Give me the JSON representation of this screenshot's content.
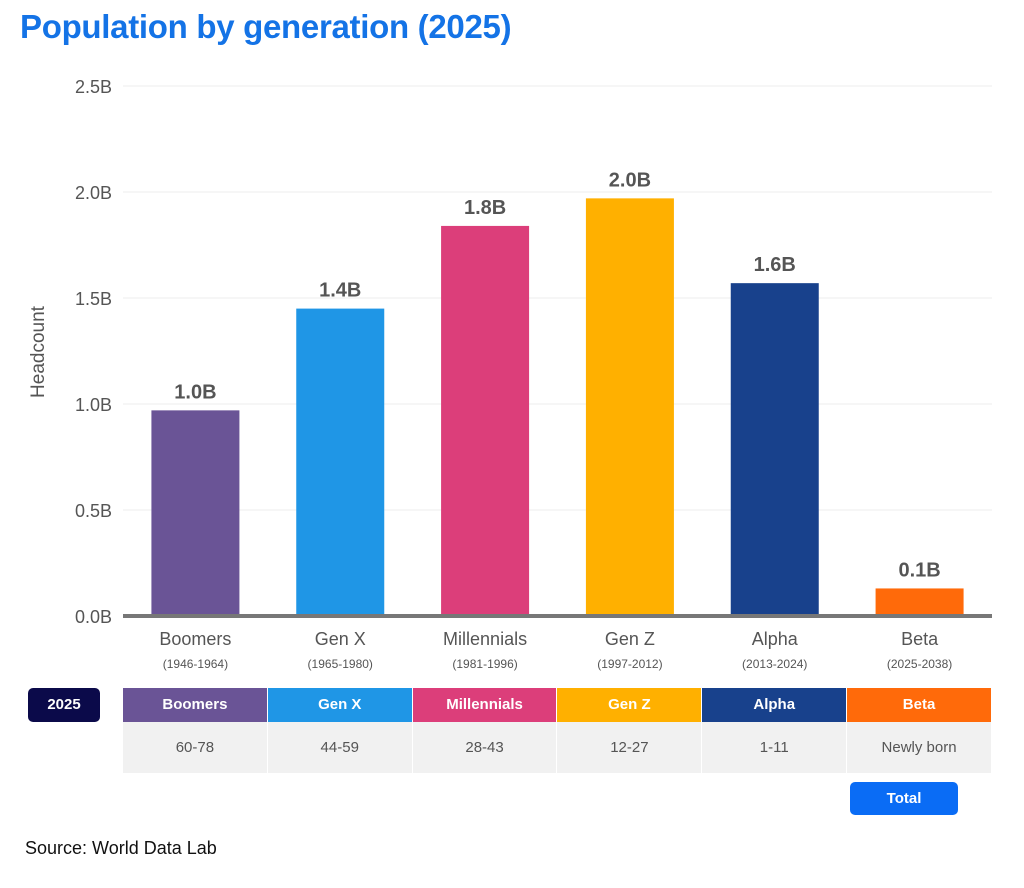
{
  "title": "Population by generation (2025)",
  "chart_data": {
    "type": "bar",
    "title": "Population by generation (2025)",
    "ylabel": "Headcount",
    "xlabel": "",
    "ylim": [
      0,
      2.5
    ],
    "yticks": [
      "0.0B",
      "0.5B",
      "1.0B",
      "1.5B",
      "2.0B",
      "2.5B"
    ],
    "grid": true,
    "categories": [
      "Boomers",
      "Gen X",
      "Millennials",
      "Gen Z",
      "Alpha",
      "Beta"
    ],
    "subcategories": [
      "(1946-1964)",
      "(1965-1980)",
      "(1981-1996)",
      "(1997-2012)",
      "(2013-2024)",
      "(2025-2038)"
    ],
    "values": [
      0.97,
      1.45,
      1.84,
      1.97,
      1.57,
      0.13
    ],
    "data_labels": [
      "1.0B",
      "1.4B",
      "1.8B",
      "2.0B",
      "1.6B",
      "0.1B"
    ],
    "colors": [
      "#6a5496",
      "#1f96e6",
      "#dc3e7a",
      "#ffb000",
      "#18418c",
      "#ff6a0a"
    ]
  },
  "table": {
    "year_label": "2025",
    "headers": [
      "Boomers",
      "Gen X",
      "Millennials",
      "Gen Z",
      "Alpha",
      "Beta"
    ],
    "ages": [
      "60-78",
      "44-59",
      "28-43",
      "12-27",
      "1-11",
      "Newly born"
    ],
    "total_label": "Total"
  },
  "source": "Source: World Data Lab"
}
